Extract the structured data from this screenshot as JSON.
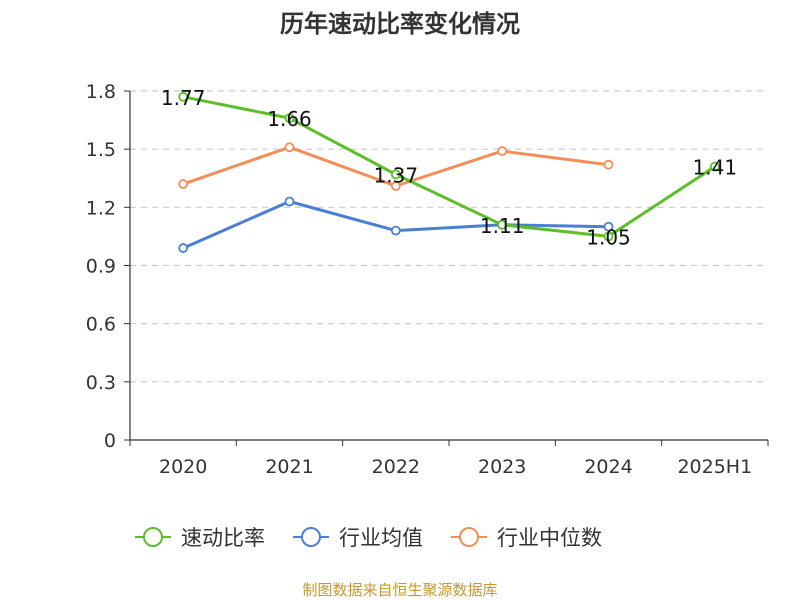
{
  "chart_data": {
    "type": "line",
    "title": "历年速动比率变化情况",
    "categories": [
      "2020",
      "2021",
      "2022",
      "2023",
      "2024",
      "2025H1"
    ],
    "yticks": [
      "0",
      "0.3",
      "0.6",
      "0.9",
      "1.2",
      "1.5",
      "1.8"
    ],
    "ylim": [
      0,
      1.8
    ],
    "grid": true,
    "legend_position": "bottom",
    "series": [
      {
        "name": "速动比率",
        "color": "#5cbf2a",
        "values": [
          1.77,
          1.66,
          1.37,
          1.11,
          1.05,
          1.41
        ],
        "labels": [
          "1.77",
          "1.66",
          "1.37",
          "1.11",
          "1.05",
          "1.41"
        ]
      },
      {
        "name": "行业均值",
        "color": "#4a7fd6",
        "values": [
          0.99,
          1.23,
          1.08,
          1.11,
          1.1,
          null
        ]
      },
      {
        "name": "行业中位数",
        "color": "#f28e5a",
        "values": [
          1.32,
          1.51,
          1.31,
          1.49,
          1.42,
          null
        ]
      }
    ],
    "source": "制图数据来自恒生聚源数据库"
  }
}
